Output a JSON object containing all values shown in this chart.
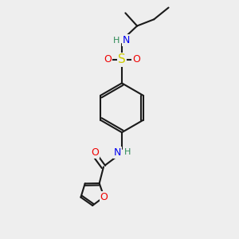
{
  "bg_color": "#eeeeee",
  "bond_color": "#1a1a1a",
  "bond_width": 1.5,
  "atom_colors": {
    "N": "#0000ee",
    "O": "#ee0000",
    "S": "#cccc00",
    "H": "#2e8b57",
    "C": "#1a1a1a"
  },
  "font_size": 9
}
